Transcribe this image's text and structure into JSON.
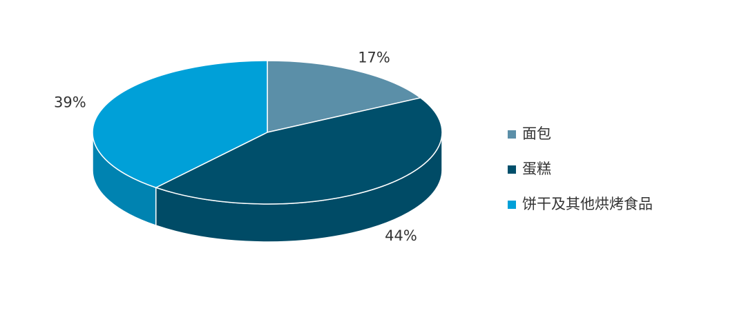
{
  "chart_data": {
    "type": "pie",
    "categories": [
      "面包",
      "蛋糕",
      "饼干及其他烘烤食品"
    ],
    "values": [
      17,
      44,
      39
    ],
    "value_labels": [
      "17%",
      "44%",
      "39%"
    ],
    "colors": [
      "#5b8fa8",
      "#004f6b",
      "#00a0d8"
    ],
    "legend": "right"
  }
}
